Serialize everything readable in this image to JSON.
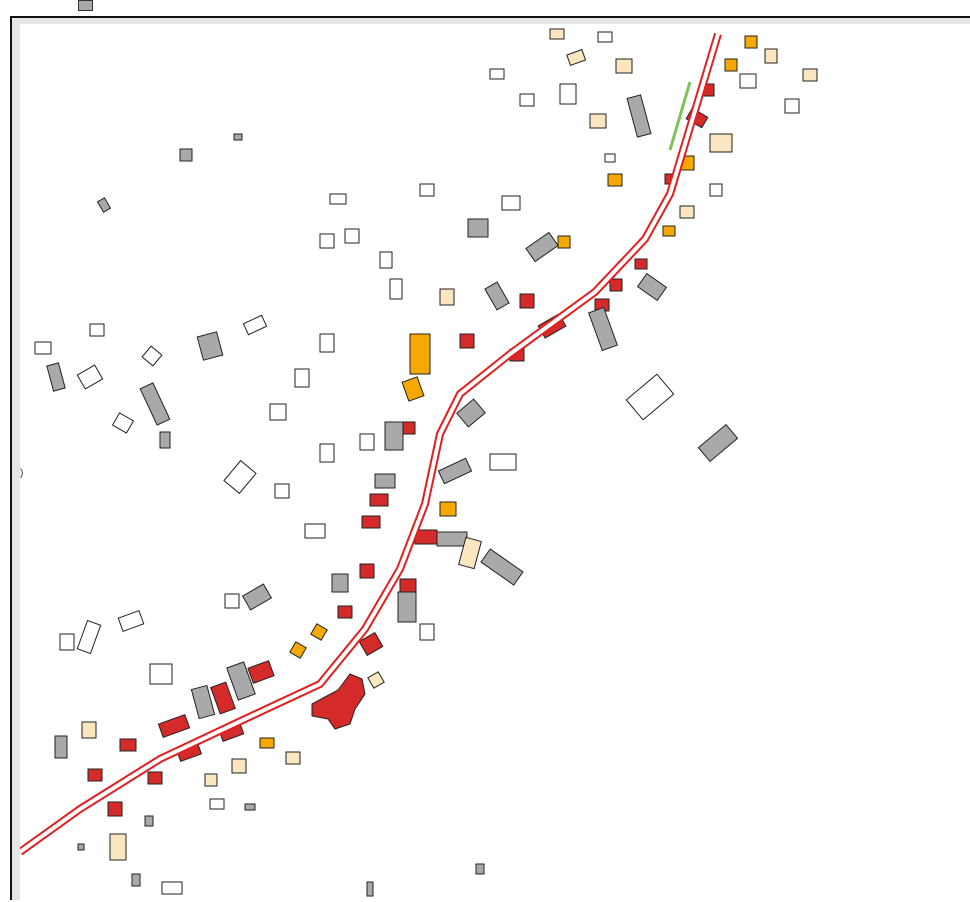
{
  "map": {
    "legend_colors": {
      "road_outline": "#e02020",
      "road_fill": "#ffffff",
      "footpath": "#7dc35a",
      "building_none": "#ffffff",
      "building_grey": "#a9a9a9",
      "building_red": "#d42a2a",
      "building_orange": "#f5a800",
      "building_cream": "#fbe7bf",
      "outline": "#222222"
    },
    "edge_markers": [
      ")"
    ]
  }
}
